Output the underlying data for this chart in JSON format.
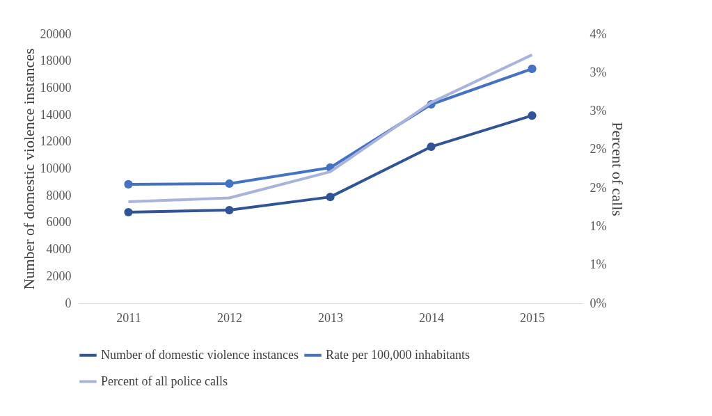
{
  "chart_data": {
    "type": "line",
    "categories": [
      "2011",
      "2012",
      "2013",
      "2014",
      "2015"
    ],
    "ylabel": "Number of domestic violence instances",
    "y2label": "Percent of calls",
    "ylim": [
      0,
      20000
    ],
    "yticks": [
      0,
      2000,
      4000,
      6000,
      8000,
      10000,
      12000,
      14000,
      16000,
      18000,
      20000
    ],
    "y2lim": [
      0,
      3.5
    ],
    "y2ticks": [
      {
        "value": 0,
        "label": "0%"
      },
      {
        "value": 0.5,
        "label": "1%"
      },
      {
        "value": 1,
        "label": "1%"
      },
      {
        "value": 1.5,
        "label": "2%"
      },
      {
        "value": 2,
        "label": "2%"
      },
      {
        "value": 2.5,
        "label": "3%"
      },
      {
        "value": 3,
        "label": "3%"
      },
      {
        "value": 3.5,
        "label": "4%"
      }
    ],
    "grid": false,
    "legend": "bottom",
    "series": [
      {
        "name": "Number of domestic violence instances",
        "color": "#2f5597",
        "marker": "circle",
        "values": [
          6770,
          6920,
          7900,
          11630,
          13950
        ]
      },
      {
        "name": "Rate per 100,000 inhabitants",
        "color": "#4472c4",
        "marker": "circle",
        "values": [
          8840,
          8890,
          10080,
          14780,
          17420
        ]
      },
      {
        "name": "Percent of all police calls",
        "color": "#a9b4dc",
        "marker": "none",
        "axis": "y2",
        "values": [
          1.32,
          1.37,
          1.71,
          2.61,
          3.23
        ]
      }
    ]
  }
}
